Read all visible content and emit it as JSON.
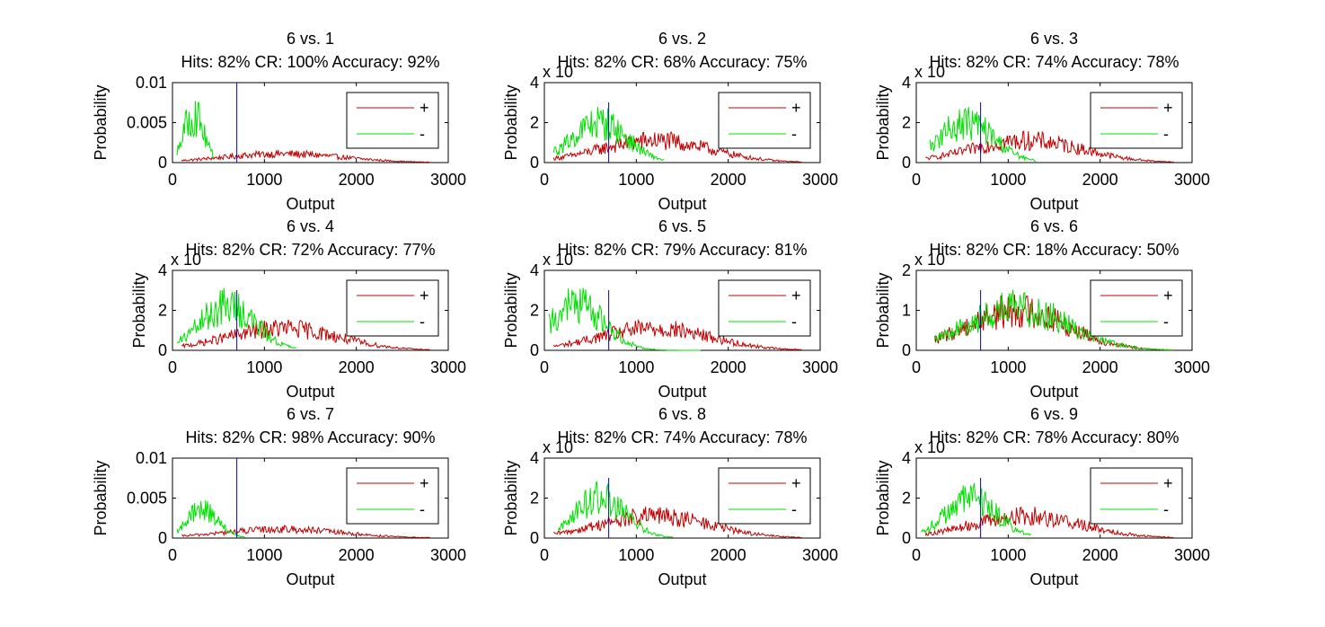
{
  "figure": {
    "background": "#ffffff",
    "colors": {
      "pos": "#c00000",
      "neg": "#00e000",
      "threshold": "#0000c0",
      "axis": "#000000"
    }
  },
  "chart_data": [
    {
      "type": "line",
      "title": "6 vs. 1",
      "subtitle": "Hits: 82% CR: 100% Accuracy: 92%",
      "xlabel": "Output",
      "ylabel": "Probability",
      "xlim": [
        0,
        3000
      ],
      "ylim": [
        0,
        0.01
      ],
      "xticks": [
        "0",
        "1000",
        "2000",
        "3000"
      ],
      "yticks": [
        "0",
        "0.005",
        "0.01"
      ],
      "exponent": "",
      "threshold": 700,
      "legend": {
        "position": "top-right",
        "entries": [
          "+",
          "-"
        ]
      },
      "series": [
        {
          "name": "+",
          "color": "#c00000",
          "start": 100,
          "end": 2800,
          "peak": 0.0011,
          "mode": 1200,
          "spread": 650
        },
        {
          "name": "-",
          "color": "#00e000",
          "start": 50,
          "end": 450,
          "peak": 0.006,
          "mode": 230,
          "spread": 110
        }
      ]
    },
    {
      "type": "line",
      "title": "6 vs. 2",
      "subtitle": "Hits: 82% CR: 68% Accuracy: 75%",
      "xlabel": "Output",
      "ylabel": "Probability",
      "xlim": [
        0,
        3000
      ],
      "ylim": [
        0,
        4
      ],
      "xticks": [
        "0",
        "1000",
        "2000",
        "3000"
      ],
      "yticks": [
        "0",
        "2",
        "4"
      ],
      "exponent": "x 10",
      "threshold": 700,
      "legend": {
        "position": "top-right",
        "entries": [
          "+",
          "-"
        ]
      },
      "series": [
        {
          "name": "+",
          "color": "#c00000",
          "start": 100,
          "end": 2800,
          "peak": 1.1,
          "mode": 1200,
          "spread": 600
        },
        {
          "name": "-",
          "color": "#00e000",
          "start": 100,
          "end": 1300,
          "peak": 2.0,
          "mode": 600,
          "spread": 300
        }
      ]
    },
    {
      "type": "line",
      "title": "6 vs. 3",
      "subtitle": "Hits: 82% CR: 74% Accuracy: 78%",
      "xlabel": "Output",
      "ylabel": "Probability",
      "xlim": [
        0,
        3000
      ],
      "ylim": [
        0,
        4
      ],
      "xticks": [
        "0",
        "1000",
        "2000",
        "3000"
      ],
      "yticks": [
        "0",
        "2",
        "4"
      ],
      "exponent": "x 10",
      "threshold": 700,
      "legend": {
        "position": "top-right",
        "entries": [
          "+",
          "-"
        ]
      },
      "series": [
        {
          "name": "+",
          "color": "#c00000",
          "start": 100,
          "end": 2800,
          "peak": 1.1,
          "mode": 1200,
          "spread": 600
        },
        {
          "name": "-",
          "color": "#00e000",
          "start": 150,
          "end": 1300,
          "peak": 2.0,
          "mode": 550,
          "spread": 300
        }
      ]
    },
    {
      "type": "line",
      "title": "6 vs. 4",
      "subtitle": "Hits: 82% CR: 72% Accuracy: 77%",
      "xlabel": "Output",
      "ylabel": "Probability",
      "xlim": [
        0,
        3000
      ],
      "ylim": [
        0,
        4
      ],
      "xticks": [
        "0",
        "1000",
        "2000",
        "3000"
      ],
      "yticks": [
        "0",
        "2",
        "4"
      ],
      "exponent": "x 10",
      "threshold": 700,
      "legend": {
        "position": "top-right",
        "entries": [
          "+",
          "-"
        ]
      },
      "series": [
        {
          "name": "+",
          "color": "#c00000",
          "start": 100,
          "end": 2800,
          "peak": 1.1,
          "mode": 1200,
          "spread": 600
        },
        {
          "name": "-",
          "color": "#00e000",
          "start": 50,
          "end": 1350,
          "peak": 2.2,
          "mode": 600,
          "spread": 300
        }
      ]
    },
    {
      "type": "line",
      "title": "6 vs. 5",
      "subtitle": "Hits: 82% CR: 79% Accuracy: 81%",
      "xlabel": "Output",
      "ylabel": "Probability",
      "xlim": [
        0,
        3000
      ],
      "ylim": [
        0,
        4
      ],
      "xticks": [
        "0",
        "1000",
        "2000",
        "3000"
      ],
      "yticks": [
        "0",
        "2",
        "4"
      ],
      "exponent": "x 10",
      "threshold": 700,
      "legend": {
        "position": "top-right",
        "entries": [
          "+",
          "-"
        ]
      },
      "series": [
        {
          "name": "+",
          "color": "#c00000",
          "start": 100,
          "end": 2800,
          "peak": 1.1,
          "mode": 1200,
          "spread": 600
        },
        {
          "name": "-",
          "color": "#00e000",
          "start": 50,
          "end": 1700,
          "peak": 2.3,
          "mode": 350,
          "spread": 300
        }
      ]
    },
    {
      "type": "line",
      "title": "6 vs. 6",
      "subtitle": "Hits: 82% CR: 18% Accuracy: 50%",
      "xlabel": "Output",
      "ylabel": "Probability",
      "xlim": [
        0,
        3000
      ],
      "ylim": [
        0,
        2
      ],
      "xticks": [
        "0",
        "1000",
        "2000",
        "3000"
      ],
      "yticks": [
        "0",
        "1",
        "2"
      ],
      "exponent": "x 10",
      "threshold": 700,
      "legend": {
        "position": "top-right",
        "entries": [
          "+",
          "-"
        ]
      },
      "series": [
        {
          "name": "+",
          "color": "#c00000",
          "start": 200,
          "end": 2800,
          "peak": 1.0,
          "mode": 1100,
          "spread": 550
        },
        {
          "name": "-",
          "color": "#00e000",
          "start": 200,
          "end": 2800,
          "peak": 1.05,
          "mode": 1100,
          "spread": 550
        }
      ]
    },
    {
      "type": "line",
      "title": "6 vs. 7",
      "subtitle": "Hits: 82% CR: 98% Accuracy: 90%",
      "xlabel": "Output",
      "ylabel": "Probability",
      "xlim": [
        0,
        3000
      ],
      "ylim": [
        0,
        0.01
      ],
      "xticks": [
        "0",
        "1000",
        "2000",
        "3000"
      ],
      "yticks": [
        "0",
        "0.005",
        "0.01"
      ],
      "exponent": "",
      "threshold": 700,
      "legend": {
        "position": "top-right",
        "entries": [
          "+",
          "-"
        ]
      },
      "series": [
        {
          "name": "+",
          "color": "#c00000",
          "start": 100,
          "end": 2800,
          "peak": 0.0011,
          "mode": 1200,
          "spread": 650
        },
        {
          "name": "-",
          "color": "#00e000",
          "start": 50,
          "end": 800,
          "peak": 0.0036,
          "mode": 330,
          "spread": 170
        }
      ]
    },
    {
      "type": "line",
      "title": "6 vs. 8",
      "subtitle": "Hits: 82% CR: 74% Accuracy: 78%",
      "xlabel": "Output",
      "ylabel": "Probability",
      "xlim": [
        0,
        3000
      ],
      "ylim": [
        0,
        4
      ],
      "xticks": [
        "0",
        "1000",
        "2000",
        "3000"
      ],
      "yticks": [
        "0",
        "2",
        "4"
      ],
      "exponent": "x 10",
      "threshold": 700,
      "legend": {
        "position": "top-right",
        "entries": [
          "+",
          "-"
        ]
      },
      "series": [
        {
          "name": "+",
          "color": "#c00000",
          "start": 100,
          "end": 2800,
          "peak": 1.1,
          "mode": 1200,
          "spread": 600
        },
        {
          "name": "-",
          "color": "#00e000",
          "start": 150,
          "end": 1400,
          "peak": 2.0,
          "mode": 600,
          "spread": 280
        }
      ]
    },
    {
      "type": "line",
      "title": "6 vs. 9",
      "subtitle": "Hits: 82% CR: 78% Accuracy: 80%",
      "xlabel": "Output",
      "ylabel": "Probability",
      "xlim": [
        0,
        3000
      ],
      "ylim": [
        0,
        4
      ],
      "xticks": [
        "0",
        "1000",
        "2000",
        "3000"
      ],
      "yticks": [
        "0",
        "2",
        "4"
      ],
      "exponent": "x 10",
      "threshold": 700,
      "legend": {
        "position": "top-right",
        "entries": [
          "+",
          "-"
        ]
      },
      "series": [
        {
          "name": "+",
          "color": "#c00000",
          "start": 100,
          "end": 2800,
          "peak": 1.1,
          "mode": 1200,
          "spread": 600
        },
        {
          "name": "-",
          "color": "#00e000",
          "start": 50,
          "end": 1250,
          "peak": 2.0,
          "mode": 600,
          "spread": 280
        }
      ]
    }
  ]
}
